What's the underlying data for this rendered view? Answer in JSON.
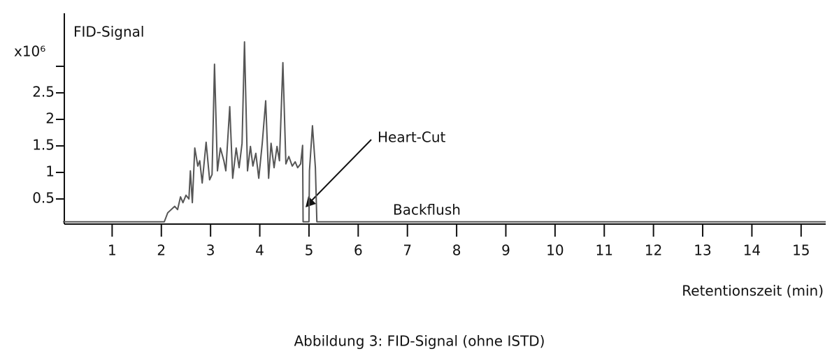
{
  "chart_data": {
    "type": "line",
    "y_label": "FID-Signal",
    "x_label": "Retentionszeit (min)",
    "caption": "Abbildung 3: FID-Signal (ohne ISTD)",
    "annotations": [
      "Heart-Cut",
      "Backflush"
    ],
    "xlim": [
      0,
      15.5
    ],
    "xticks": [
      1,
      2,
      3,
      4,
      5,
      6,
      7,
      8,
      9,
      10,
      11,
      12,
      13,
      14,
      15
    ],
    "ylim": [
      0,
      4
    ],
    "yticks": [
      0.5,
      1,
      1.5,
      2,
      2.5,
      {
        "value": 3,
        "label": "x10⁶"
      }
    ],
    "x": [
      0,
      2.06,
      2.13,
      2.2,
      2.27,
      2.33,
      2.39,
      2.44,
      2.5,
      2.56,
      2.59,
      2.63,
      2.68,
      2.74,
      2.78,
      2.83,
      2.91,
      2.98,
      3.03,
      3.08,
      3.14,
      3.2,
      3.27,
      3.31,
      3.39,
      3.45,
      3.52,
      3.58,
      3.64,
      3.69,
      3.75,
      3.81,
      3.86,
      3.92,
      3.98,
      4.05,
      4.12,
      4.18,
      4.23,
      4.29,
      4.35,
      4.4,
      4.47,
      4.53,
      4.59,
      4.66,
      4.72,
      4.77,
      4.83,
      4.87,
      4.88,
      5.0,
      5.01,
      5.07,
      5.13,
      5.16,
      5.18,
      15.5
    ],
    "series": [
      {
        "name": "FID-Signal",
        "color": "#555555",
        "values": [
          0.07,
          0.07,
          0.24,
          0.3,
          0.36,
          0.3,
          0.54,
          0.43,
          0.57,
          0.5,
          1.03,
          0.43,
          1.46,
          1.12,
          1.22,
          0.8,
          1.57,
          0.86,
          0.96,
          3.04,
          1.03,
          1.46,
          1.22,
          1.03,
          2.24,
          0.89,
          1.46,
          1.09,
          1.55,
          3.46,
          1.03,
          1.49,
          1.12,
          1.36,
          0.89,
          1.55,
          2.35,
          0.89,
          1.55,
          1.09,
          1.49,
          1.22,
          3.07,
          1.16,
          1.3,
          1.12,
          1.2,
          1.09,
          1.16,
          1.51,
          0.07,
          0.07,
          1.03,
          1.88,
          1.09,
          0.07,
          0.07,
          0.07
        ]
      }
    ]
  }
}
